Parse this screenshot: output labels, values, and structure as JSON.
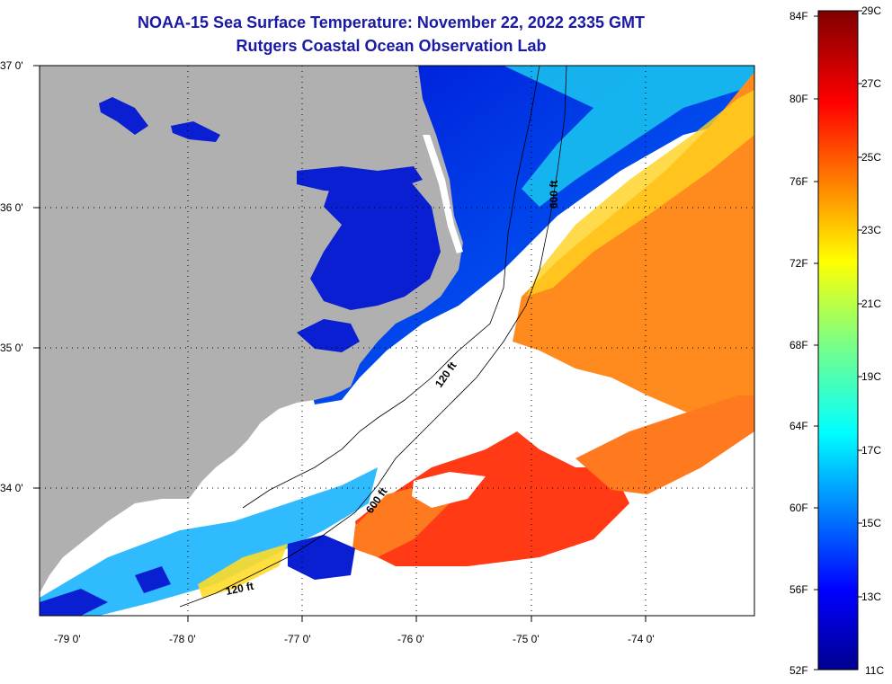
{
  "title": "NOAA-15 Sea Surface Temperature:  November 22, 2022 2335 GMT",
  "subtitle": "Rutgers Coastal Ocean Observation Lab",
  "colors": {
    "land": "#b0b0b0",
    "cloud": "#ffffff",
    "title": "#1a1aa6"
  },
  "lat_labels": [
    "37 0'",
    "36 0'",
    "35 0'",
    "34 0'"
  ],
  "lon_labels": [
    "-79 0'",
    "-78 0'",
    "-77 0'",
    "-76 0'",
    "-75 0'",
    "-74 0'"
  ],
  "contour_labels": [
    "600 ft",
    "120 ft",
    "600 ft",
    "120 ft"
  ],
  "colorbar": {
    "fahrenheit": [
      "84F",
      "80F",
      "76F",
      "72F",
      "68F",
      "64F",
      "60F",
      "56F",
      "52F"
    ],
    "celsius": [
      "29C",
      "27C",
      "25C",
      "23C",
      "21C",
      "19C",
      "17C",
      "15C",
      "13C",
      "11C"
    ]
  }
}
